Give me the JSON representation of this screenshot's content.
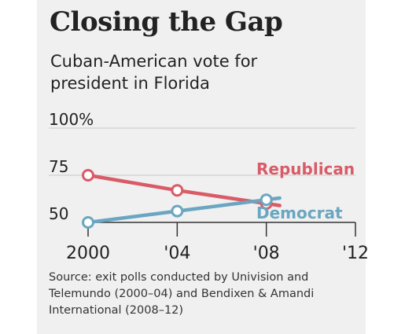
{
  "chart_data": {
    "type": "line",
    "title": "Closing the Gap",
    "subtitle": "Cuban-American vote for president in Florida",
    "x_tick_labels": [
      "2000",
      "'04",
      "'08",
      "'12"
    ],
    "x": [
      2000,
      2004,
      2008
    ],
    "xlim": [
      2000,
      2012
    ],
    "y_tick_labels": [
      "100%",
      "75",
      "50"
    ],
    "y_ticks": [
      100,
      75,
      50
    ],
    "ylim": [
      50,
      100
    ],
    "series": [
      {
        "name": "Republican",
        "color": "#d95b67",
        "values": [
          75,
          67,
          60
        ]
      },
      {
        "name": "Democrat",
        "color": "#6aa6c1",
        "values": [
          50,
          56,
          62
        ]
      }
    ],
    "source": "Source: exit polls conducted by Univision and Telemundo (2000–04) and Bendixen & Amandi International (2008–12)"
  }
}
